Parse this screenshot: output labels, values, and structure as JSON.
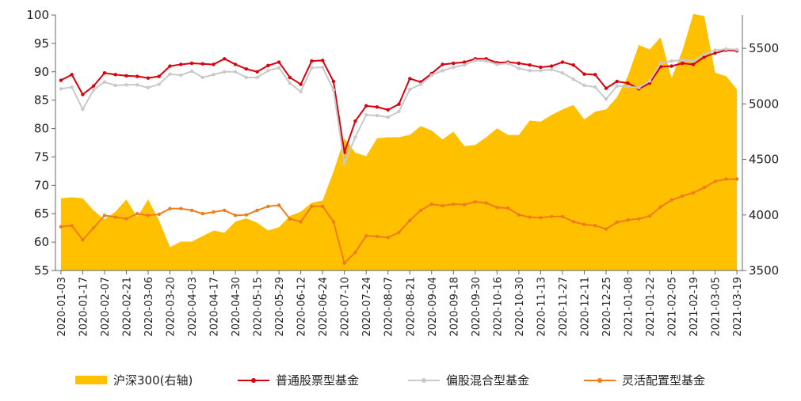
{
  "chart_data": {
    "type": "line",
    "title": "",
    "xlabel": "",
    "ylabel": "",
    "y2label": "",
    "ylim": [
      55,
      100
    ],
    "y2lim": [
      3500,
      5800
    ],
    "yticks": [
      55,
      60,
      65,
      70,
      75,
      80,
      85,
      90,
      95,
      100
    ],
    "y2ticks": [
      3500,
      4000,
      4500,
      5000,
      5500
    ],
    "legend_position": "bottom",
    "grid": false,
    "x_dates": [
      "2020-01-03",
      "2020-01-10",
      "2020-01-17",
      "2020-01-24",
      "2020-02-07",
      "2020-02-14",
      "2020-02-21",
      "2020-02-28",
      "2020-03-06",
      "2020-03-13",
      "2020-03-20",
      "2020-03-27",
      "2020-04-03",
      "2020-04-10",
      "2020-04-17",
      "2020-04-24",
      "2020-04-30",
      "2020-05-08",
      "2020-05-15",
      "2020-05-22",
      "2020-05-29",
      "2020-06-05",
      "2020-06-12",
      "2020-06-19",
      "2020-06-24",
      "2020-07-03",
      "2020-07-10",
      "2020-07-17",
      "2020-07-24",
      "2020-07-31",
      "2020-08-07",
      "2020-08-14",
      "2020-08-21",
      "2020-08-28",
      "2020-09-04",
      "2020-09-11",
      "2020-09-18",
      "2020-09-25",
      "2020-09-30",
      "2020-10-09",
      "2020-10-16",
      "2020-10-23",
      "2020-10-30",
      "2020-11-06",
      "2020-11-13",
      "2020-11-20",
      "2020-11-27",
      "2020-12-04",
      "2020-12-11",
      "2020-12-18",
      "2020-12-25",
      "2020-12-31",
      "2021-01-08",
      "2021-01-15",
      "2021-01-22",
      "2021-01-29",
      "2021-02-05",
      "2021-02-10",
      "2021-02-19",
      "2021-02-26",
      "2021-03-05",
      "2021-03-12",
      "2021-03-19"
    ],
    "x_tick_labels": [
      "2020-01-03",
      "2020-01-17",
      "2020-02-07",
      "2020-02-21",
      "2020-03-06",
      "2020-03-20",
      "2020-04-03",
      "2020-04-17",
      "2020-04-30",
      "2020-05-15",
      "2020-05-29",
      "2020-06-12",
      "2020-06-24",
      "2020-07-10",
      "2020-07-24",
      "2020-08-07",
      "2020-08-21",
      "2020-09-04",
      "2020-09-18",
      "2020-09-30",
      "2020-10-16",
      "2020-10-30",
      "2020-11-13",
      "2020-11-27",
      "2020-12-11",
      "2020-12-25",
      "2021-01-08",
      "2021-01-22",
      "2021-02-05",
      "2021-02-19",
      "2021-03-05",
      "2021-03-19"
    ],
    "series": [
      {
        "name": "沪深300(右轴)",
        "kind": "area",
        "axis": "right",
        "color": "#FFC000",
        "values": [
          4150,
          4160,
          4150,
          4040,
          3960,
          4030,
          4140,
          3980,
          4140,
          3950,
          3710,
          3760,
          3760,
          3810,
          3860,
          3840,
          3940,
          3970,
          3930,
          3860,
          3890,
          3990,
          4030,
          4110,
          4130,
          4390,
          4690,
          4560,
          4530,
          4690,
          4700,
          4700,
          4720,
          4800,
          4760,
          4680,
          4750,
          4620,
          4630,
          4700,
          4780,
          4720,
          4720,
          4850,
          4840,
          4900,
          4950,
          4990,
          4860,
          4930,
          4950,
          5060,
          5250,
          5530,
          5490,
          5600,
          5230,
          5480,
          5810,
          5790,
          5280,
          5250,
          5130
        ]
      },
      {
        "name": "普通股票型基金",
        "kind": "line",
        "axis": "left",
        "color": "#D9000D",
        "values": [
          88.5,
          89.5,
          86.0,
          87.5,
          89.8,
          89.5,
          89.3,
          89.2,
          88.9,
          89.2,
          91.0,
          91.3,
          91.5,
          91.4,
          91.3,
          92.3,
          91.3,
          90.5,
          90.0,
          91.1,
          91.7,
          89.0,
          87.8,
          91.9,
          92.0,
          88.3,
          75.8,
          81.3,
          84.0,
          83.8,
          83.3,
          84.3,
          88.8,
          88.2,
          89.7,
          91.3,
          91.5,
          91.7,
          92.3,
          92.3,
          91.6,
          91.7,
          91.5,
          91.2,
          90.8,
          91.0,
          91.7,
          91.2,
          89.6,
          89.5,
          87.1,
          88.3,
          88.0,
          87.0,
          88.0,
          90.9,
          91.0,
          91.5,
          91.3,
          92.6,
          93.3,
          93.8,
          93.7
        ]
      },
      {
        "name": "偏股混合型基金",
        "kind": "line",
        "axis": "left",
        "color": "#C9C9C9",
        "values": [
          87.0,
          87.3,
          83.4,
          86.8,
          88.2,
          87.6,
          87.7,
          87.7,
          87.2,
          87.8,
          89.6,
          89.4,
          90.1,
          89.0,
          89.5,
          90.0,
          90.0,
          89.0,
          89.0,
          90.2,
          90.7,
          88.0,
          86.5,
          90.7,
          90.8,
          86.8,
          73.9,
          78.5,
          82.4,
          82.3,
          82.0,
          83.0,
          86.9,
          87.8,
          89.4,
          90.2,
          90.8,
          91.2,
          92.0,
          91.9,
          91.3,
          91.5,
          90.6,
          90.2,
          90.2,
          90.4,
          89.8,
          88.7,
          87.6,
          87.3,
          85.2,
          87.5,
          87.4,
          87.2,
          88.4,
          91.5,
          91.9,
          92.1,
          91.9,
          93.1,
          93.8,
          94.0,
          93.9
        ]
      },
      {
        "name": "灵活配置型基金",
        "kind": "line",
        "axis": "left",
        "color": "#F07D1A",
        "values": [
          62.7,
          62.9,
          60.4,
          62.5,
          64.7,
          64.4,
          64.1,
          65.0,
          64.7,
          64.9,
          65.9,
          65.9,
          65.6,
          65.0,
          65.3,
          65.6,
          64.7,
          64.8,
          65.6,
          66.3,
          66.5,
          64.1,
          63.6,
          66.3,
          66.3,
          63.6,
          56.3,
          58.2,
          61.1,
          61.0,
          60.8,
          61.7,
          63.8,
          65.6,
          66.7,
          66.4,
          66.7,
          66.6,
          67.1,
          66.9,
          66.1,
          66.0,
          64.8,
          64.4,
          64.3,
          64.5,
          64.5,
          63.6,
          63.1,
          62.9,
          62.3,
          63.5,
          63.9,
          64.1,
          64.6,
          66.2,
          67.4,
          68.1,
          68.7,
          69.6,
          70.7,
          71.1,
          71.1
        ]
      }
    ]
  }
}
